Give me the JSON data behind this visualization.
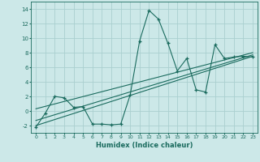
{
  "xlabel": "Humidex (Indice chaleur)",
  "background_color": "#cce8e8",
  "grid_color": "#aacfcf",
  "line_color": "#1a6b5e",
  "xlim": [
    -0.5,
    23.5
  ],
  "ylim": [
    -3.0,
    15.0
  ],
  "xticks": [
    0,
    1,
    2,
    3,
    4,
    5,
    6,
    7,
    8,
    9,
    10,
    11,
    12,
    13,
    14,
    15,
    16,
    17,
    18,
    19,
    20,
    21,
    22,
    23
  ],
  "yticks": [
    -2,
    0,
    2,
    4,
    6,
    8,
    10,
    12,
    14
  ],
  "zigzag_x": [
    0,
    1,
    2,
    3,
    4,
    5,
    6,
    7,
    8,
    9,
    10,
    11,
    12,
    13,
    14,
    15,
    16,
    17,
    18,
    19,
    20,
    21,
    22,
    23
  ],
  "zigzag_y": [
    -2.2,
    -0.3,
    2.0,
    1.8,
    0.5,
    0.6,
    -1.8,
    -1.8,
    -1.9,
    -1.8,
    2.2,
    9.6,
    13.8,
    12.6,
    9.3,
    5.5,
    7.2,
    2.9,
    2.6,
    9.1,
    7.2,
    7.4,
    7.5,
    7.4
  ],
  "line1_x": [
    0,
    23
  ],
  "line1_y": [
    -2.0,
    7.5
  ],
  "line2_x": [
    0,
    23
  ],
  "line2_y": [
    -1.3,
    7.7
  ],
  "line3_x": [
    0,
    23
  ],
  "line3_y": [
    0.3,
    8.0
  ]
}
